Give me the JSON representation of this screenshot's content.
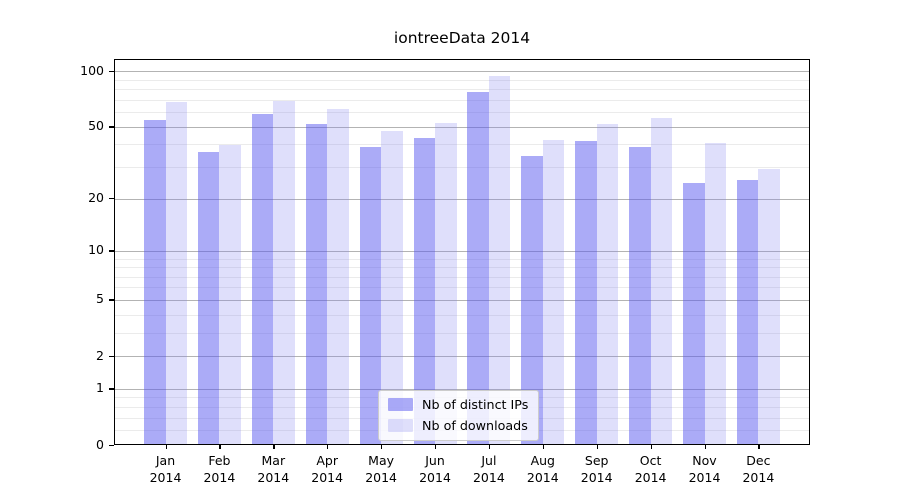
{
  "title": "iontreeData 2014",
  "chart_data": {
    "type": "bar",
    "title": "iontreeData 2014",
    "categories": [
      "Jan 2014",
      "Feb 2014",
      "Mar 2014",
      "Apr 2014",
      "May 2014",
      "Jun 2014",
      "Jul 2014",
      "Aug 2014",
      "Sep 2014",
      "Oct 2014",
      "Nov 2014",
      "Dec 2014"
    ],
    "series": [
      {
        "name": "Nb of distinct IPs",
        "values": [
          54,
          36,
          58,
          51,
          38,
          43,
          76,
          34,
          41,
          38,
          24,
          25
        ],
        "fill": "rgba(88,88,240,0.5)"
      },
      {
        "name": "Nb of downloads",
        "values": [
          67,
          39,
          68,
          62,
          47,
          52,
          93,
          42,
          51,
          55,
          40,
          29
        ],
        "fill": "rgba(128,128,240,0.25)"
      }
    ],
    "xlabel": "",
    "ylabel": "",
    "yscale": "log1p",
    "ylim": [
      0,
      116
    ],
    "yticks": [
      0,
      1,
      2,
      5,
      10,
      20,
      50,
      100
    ],
    "minor_yticks": [
      0.2,
      0.4,
      0.6,
      0.8,
      3,
      4,
      6,
      7,
      8,
      9,
      30,
      40,
      60,
      70,
      80,
      90
    ],
    "grid": true,
    "legend_position": "lower center"
  },
  "colors": {
    "bar_ips": "rgba(88,88,240,0.5)",
    "bar_downloads": "rgba(128,128,240,0.25)",
    "grid_major": "#b3b3b3",
    "grid_minor": "#ebebeb",
    "spine": "#000000",
    "legend_border": "#cccccc",
    "legend_bg": "rgba(255,255,255,0.8)"
  }
}
